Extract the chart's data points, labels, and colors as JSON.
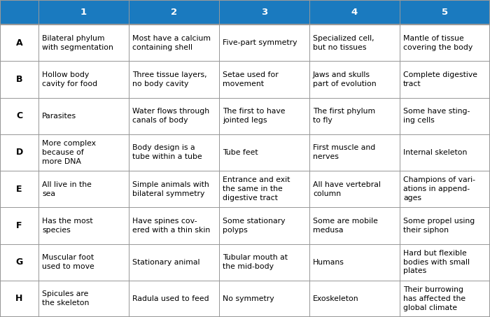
{
  "header_bg": "#1a7abf",
  "header_text_color": "#ffffff",
  "cell_bg": "#ffffff",
  "border_color": "#999999",
  "col_headers": [
    "1",
    "2",
    "3",
    "4",
    "5"
  ],
  "row_labels": [
    "A",
    "B",
    "C",
    "D",
    "E",
    "F",
    "G",
    "H"
  ],
  "cells": [
    [
      "Bilateral phylum\nwith segmentation",
      "Most have a calcium\ncontaining shell",
      "Five-part symmetry",
      "Specialized cell,\nbut no tissues",
      "Mantle of tissue\ncovering the body"
    ],
    [
      "Hollow body\ncavity for food",
      "Three tissue layers,\nno body cavity",
      "Setae used for\nmovement",
      "Jaws and skulls\npart of evolution",
      "Complete digestive\ntract"
    ],
    [
      "Parasites",
      "Water flows through\ncanals of body",
      "The first to have\njointed legs",
      "The first phylum\nto fly",
      "Some have sting-\ning cells"
    ],
    [
      "More complex\nbecause of\nmore DNA",
      "Body design is a\ntube within a tube",
      "Tube feet",
      "First muscle and\nnerves",
      "Internal skeleton"
    ],
    [
      "All live in the\nsea",
      "Simple animals with\nbilateral symmetry",
      "Entrance and exit\nthe same in the\ndigestive tract",
      "All have vertebral\ncolumn",
      "Champions of vari-\nations in append-\nages"
    ],
    [
      "Has the most\nspecies",
      "Have spines cov-\nered with a thin skin",
      "Some stationary\npolyps",
      "Some are mobile\nmedusa",
      "Some propel using\ntheir siphon"
    ],
    [
      "Muscular foot\nused to move",
      "Stationary animal",
      "Tubular mouth at\nthe mid-body",
      "Humans",
      "Hard but flexible\nbodies with small\nplates"
    ],
    [
      "Spicules are\nthe skeleton",
      "Radula used to feed",
      "No symmetry",
      "Exoskeleton",
      "Their burrowing\nhas affected the\nglobal climate"
    ]
  ],
  "font_size_header": 9.5,
  "font_size_cell": 7.8,
  "font_size_row_label": 9
}
